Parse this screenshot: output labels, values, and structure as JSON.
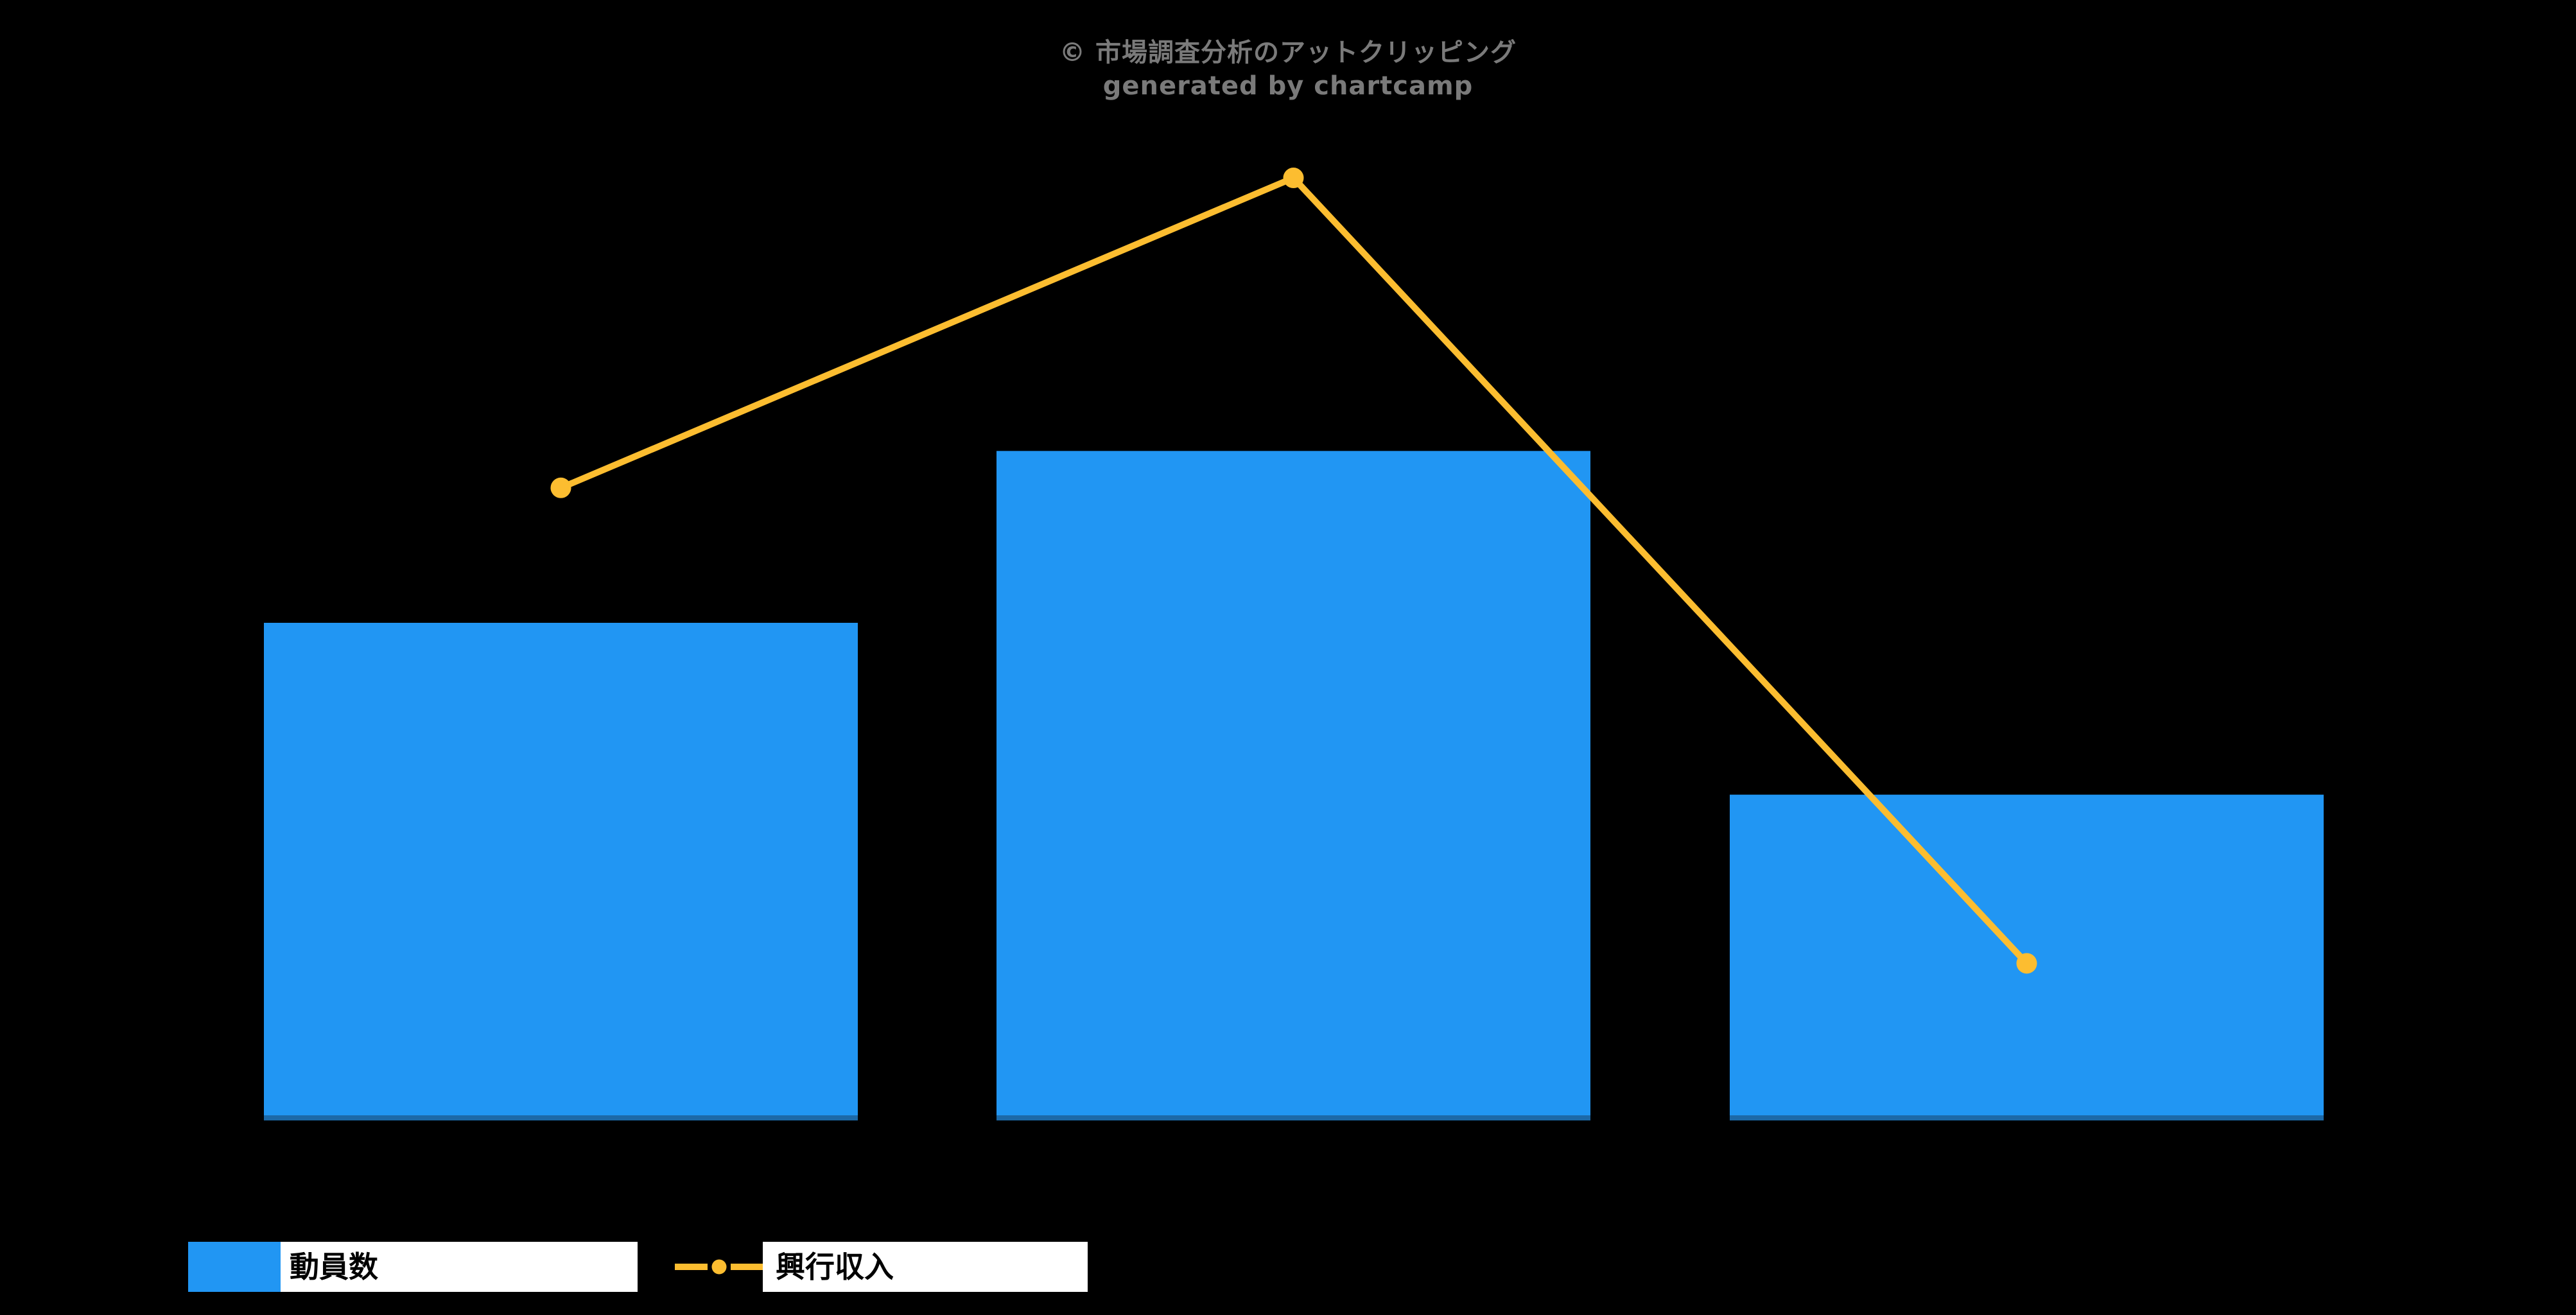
{
  "watermark": {
    "line1": "© 市場調査分析のアットクリッピング",
    "line2": "generated by chartcamp",
    "color": "#7a7a7a"
  },
  "legend": {
    "position": "bottom-left",
    "items": [
      {
        "label": "動員数",
        "type": "bar",
        "swatch_color": "#2196F3",
        "box_bg": "#ffffff",
        "text_color": "#000000"
      },
      {
        "label": "興行収入",
        "type": "line",
        "marker_color": "#FCBD30",
        "box_bg": "#ffffff",
        "text_color": "#000000"
      }
    ]
  },
  "colors": {
    "background": "#000000",
    "bar": "#2196F3",
    "bar_base_strip": "#1C69A8",
    "line": "#FCBD30",
    "watermark": "#7a7a7a"
  },
  "chart_data": {
    "type": "combo",
    "title": "",
    "xlabel": "",
    "ylabel": "",
    "categories": [
      "",
      "",
      ""
    ],
    "series": [
      {
        "name": "動員数",
        "type": "bar",
        "color": "#2196F3",
        "values": [
          47.2,
          63.5,
          30.9
        ]
      },
      {
        "name": "興行収入",
        "type": "line",
        "color": "#FCBD30",
        "values": [
          60.0,
          89.4,
          14.9
        ]
      }
    ],
    "ylim": [
      0,
      100
    ],
    "value_units": "relative height, % of plot area (chart shows no axes, ticks, gridlines or value labels)",
    "grid": false,
    "axes_visible": false,
    "background": "#000000",
    "legend_position": "bottom-left",
    "watermark_text": "© 市場調査分析のアットクリッピング / generated by chartcamp"
  }
}
